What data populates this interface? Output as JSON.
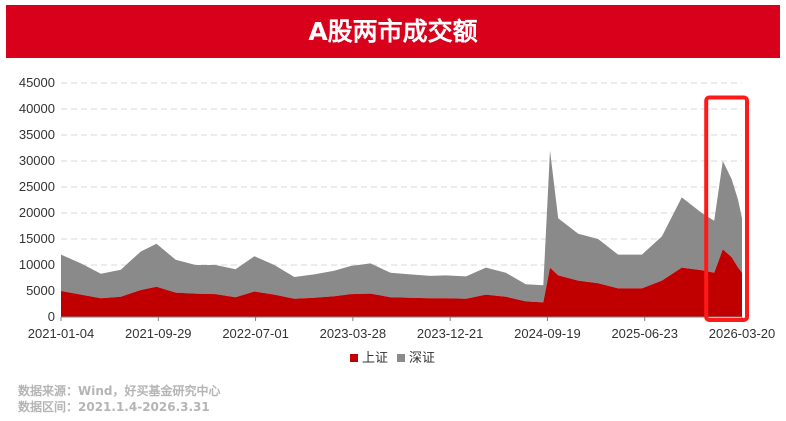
{
  "header": {
    "title": "A股两市成交额"
  },
  "colors": {
    "title_bg": "#d9001b",
    "shanghai": "#c00000",
    "shenzhen": "#8a8a8a",
    "highlight_box": "#ff1a1a"
  },
  "chart_data": {
    "type": "area",
    "stacked": true,
    "title": "A股两市成交额",
    "xlabel": "",
    "ylabel": "",
    "ylim": [
      0,
      45000
    ],
    "y_ticks": [
      "0",
      "5000",
      "10000",
      "15000",
      "20000",
      "25000",
      "30000",
      "35000",
      "40000",
      "45000"
    ],
    "x_tick_labels": [
      "2021-01-04",
      "2021-09-29",
      "2022-07-01",
      "2023-03-28",
      "2023-12-21",
      "2024-09-19",
      "2025-06-23",
      "2026-03-20"
    ],
    "x": [
      "2021-01-04",
      "2021-03-01",
      "2021-04-26",
      "2021-06-21",
      "2021-08-16",
      "2021-09-29",
      "2021-11-22",
      "2022-01-17",
      "2022-03-14",
      "2022-05-09",
      "2022-07-01",
      "2022-08-26",
      "2022-10-21",
      "2022-12-16",
      "2023-02-10",
      "2023-03-28",
      "2023-05-23",
      "2023-07-18",
      "2023-09-12",
      "2023-11-07",
      "2023-12-21",
      "2024-02-15",
      "2024-04-11",
      "2024-06-06",
      "2024-08-01",
      "2024-09-19",
      "2024-10-08",
      "2024-10-31",
      "2024-12-26",
      "2025-02-20",
      "2025-04-17",
      "2025-06-23",
      "2025-08-18",
      "2025-10-13",
      "2025-12-08",
      "2026-01-12",
      "2026-02-05",
      "2026-03-02",
      "2026-03-20",
      "2026-03-31"
    ],
    "series": [
      {
        "name": "上证",
        "values": [
          5000,
          4300,
          3600,
          3900,
          5200,
          5800,
          4700,
          4500,
          4400,
          3800,
          4900,
          4300,
          3500,
          3700,
          4000,
          4400,
          4500,
          3800,
          3700,
          3600,
          3600,
          3500,
          4300,
          3900,
          3000,
          2800,
          9500,
          8000,
          7000,
          6500,
          5500,
          5500,
          7000,
          9500,
          9000,
          8500,
          13000,
          11500,
          9500,
          8500
        ]
      },
      {
        "name": "深证",
        "values": [
          7000,
          6000,
          4700,
          5200,
          7400,
          8300,
          6300,
          5500,
          5600,
          5400,
          6800,
          5700,
          4200,
          4500,
          4900,
          5400,
          5800,
          4700,
          4500,
          4300,
          4400,
          4300,
          5200,
          4600,
          3300,
          3300,
          22500,
          11000,
          9000,
          8500,
          6500,
          6500,
          8500,
          13500,
          11000,
          10000,
          17000,
          15000,
          13000,
          10500
        ]
      }
    ],
    "legend": {
      "position": "bottom-center",
      "entries": [
        "上证",
        "深证"
      ]
    },
    "grid": {
      "y": true,
      "x": false,
      "style": "dashed"
    },
    "annotation": {
      "type": "highlight-box",
      "from": "2026-01-12",
      "to": "2026-03-31"
    }
  },
  "footer": {
    "source": "数据来源：Wind，好买基金研究中心",
    "range": "数据区间：2021.1.4-2026.3.31"
  }
}
